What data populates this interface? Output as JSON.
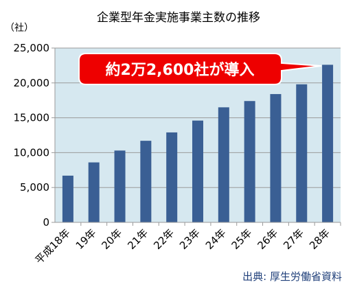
{
  "chart_data": {
    "type": "bar",
    "title": "企業型年金実施事業主数の推移",
    "unit_label": "（社）",
    "categories": [
      "平成18年",
      "19年",
      "20年",
      "21年",
      "22年",
      "23年",
      "24年",
      "25年",
      "26年",
      "27年",
      "28年"
    ],
    "values": [
      6700,
      8600,
      10300,
      11700,
      12900,
      14600,
      16500,
      17400,
      18400,
      19800,
      22600
    ],
    "ylim": [
      0,
      25000
    ],
    "yticks": [
      0,
      5000,
      10000,
      15000,
      20000,
      25000
    ],
    "ytick_labels": [
      "0",
      "5,000",
      "10,000",
      "15,000",
      "20,000",
      "25,000"
    ],
    "grid": true,
    "xlabel": "",
    "ylabel": "",
    "callout": "約2万2,600社が導入",
    "source": "出典: 厚生労働省資料",
    "colors": {
      "bar": "#3a5f94",
      "plot_background": "#d6e8f0",
      "callout": "#ee0000",
      "source_text": "#1f3f7a"
    }
  }
}
